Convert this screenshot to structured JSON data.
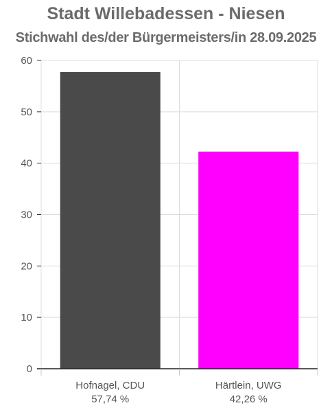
{
  "chart_data": {
    "type": "bar",
    "title": "Stadt Willebadessen - Niesen",
    "subtitle": "Stichwahl des/der Bürgermeisters/in 28.09.2025",
    "categories": [
      "Hofnagel, CDU",
      "Härtlein, UWG"
    ],
    "value_labels": [
      "57,74 %",
      "42,26 %"
    ],
    "values": [
      57.74,
      42.26
    ],
    "colors": [
      "#4a4a4a",
      "#ff00ff"
    ],
    "ylim": [
      0,
      60
    ],
    "yticks": [
      "0",
      "10",
      "20",
      "30",
      "40",
      "50",
      "60"
    ],
    "grid": true,
    "xlabel": "",
    "ylabel": ""
  }
}
